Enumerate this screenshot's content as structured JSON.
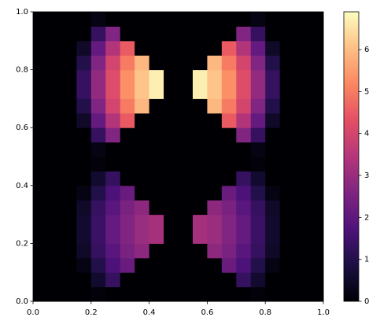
{
  "chart_data": {
    "type": "heatmap",
    "colormap": "magma",
    "xlim": [
      0,
      1
    ],
    "ylim": [
      0,
      1
    ],
    "clim": [
      0,
      6.9
    ],
    "xticks": [
      {
        "value": 0,
        "label": "0.0"
      },
      {
        "value": 0.2,
        "label": "0.2"
      },
      {
        "value": 0.4,
        "label": "0.4"
      },
      {
        "value": 0.6,
        "label": "0.6"
      },
      {
        "value": 0.8,
        "label": "0.8"
      },
      {
        "value": 1,
        "label": "1.0"
      }
    ],
    "yticks": [
      {
        "value": 0,
        "label": "0.0"
      },
      {
        "value": 0.2,
        "label": "0.2"
      },
      {
        "value": 0.4,
        "label": "0.4"
      },
      {
        "value": 0.6,
        "label": "0.6"
      },
      {
        "value": 0.8,
        "label": "0.8"
      },
      {
        "value": 1,
        "label": "1.0"
      }
    ],
    "cticks": [
      0,
      1,
      2,
      3,
      4,
      5,
      6
    ],
    "z": [
      [
        0,
        0,
        0,
        0,
        0.1,
        0,
        0,
        0,
        0,
        0,
        0,
        0,
        0,
        0,
        0,
        0.1,
        0,
        0,
        0,
        0
      ],
      [
        0,
        0,
        0,
        0,
        0.6,
        1.3,
        0,
        0,
        0,
        0,
        0,
        0,
        0,
        0,
        1.3,
        0.6,
        0,
        0,
        0,
        0
      ],
      [
        0,
        0,
        0,
        0.2,
        1.0,
        1.7,
        2.2,
        0,
        0,
        0,
        0,
        0,
        0,
        2.2,
        1.7,
        1.0,
        0.2,
        0,
        0,
        0
      ],
      [
        0,
        0,
        0,
        0.5,
        1.3,
        1.9,
        2.5,
        2.8,
        0,
        0,
        0,
        0,
        2.8,
        2.5,
        1.9,
        1.3,
        0.5,
        0,
        0,
        0
      ],
      [
        0,
        0,
        0,
        0.6,
        1.4,
        2.1,
        2.6,
        3.0,
        3.2,
        0,
        0,
        3.2,
        3.0,
        2.6,
        2.1,
        1.4,
        0.6,
        0,
        0,
        0
      ],
      [
        0,
        0,
        0,
        0.6,
        1.4,
        2.1,
        2.6,
        3.0,
        3.2,
        0,
        0,
        3.2,
        3.0,
        2.6,
        2.1,
        1.4,
        0.6,
        0,
        0,
        0
      ],
      [
        0,
        0,
        0,
        0.5,
        1.3,
        1.9,
        2.5,
        2.8,
        0,
        0,
        0,
        0,
        2.8,
        2.5,
        1.9,
        1.3,
        0.5,
        0,
        0,
        0
      ],
      [
        0,
        0,
        0,
        0.2,
        1.0,
        1.7,
        2.2,
        0,
        0,
        0,
        0,
        0,
        0,
        2.2,
        1.7,
        1.0,
        0.2,
        0,
        0,
        0
      ],
      [
        0,
        0,
        0,
        0,
        0.6,
        1.3,
        0,
        0,
        0,
        0,
        0,
        0,
        0,
        0,
        1.3,
        0.6,
        0,
        0,
        0,
        0
      ],
      [
        0,
        0,
        0,
        0,
        0.1,
        0,
        0,
        0,
        0,
        0,
        0,
        0,
        0,
        0,
        0,
        0.1,
        0,
        0,
        0,
        0
      ],
      [
        0,
        0,
        0,
        0,
        0.2,
        0,
        0,
        0,
        0,
        0,
        0,
        0,
        0,
        0,
        0,
        0.2,
        0,
        0,
        0,
        0
      ],
      [
        0,
        0,
        0,
        0,
        1.3,
        2.6,
        0,
        0,
        0,
        0,
        0,
        0,
        0,
        0,
        2.6,
        1.3,
        0,
        0,
        0,
        0
      ],
      [
        0,
        0,
        0,
        0.5,
        2.1,
        3.4,
        4.5,
        0,
        0,
        0,
        0,
        0,
        0,
        4.5,
        3.4,
        2.1,
        0.5,
        0,
        0,
        0
      ],
      [
        0,
        0,
        0,
        1.0,
        2.6,
        4.0,
        5.0,
        5.9,
        0,
        0,
        0,
        0,
        5.9,
        5.0,
        4.0,
        2.6,
        1.0,
        0,
        0,
        0
      ],
      [
        0,
        0,
        0,
        1.3,
        2.9,
        4.2,
        5.3,
        6.1,
        6.7,
        0,
        0,
        6.7,
        6.1,
        5.3,
        4.2,
        2.9,
        1.3,
        0,
        0,
        0
      ],
      [
        0,
        0,
        0,
        1.3,
        2.9,
        4.2,
        5.3,
        6.1,
        6.7,
        0,
        0,
        6.7,
        6.1,
        5.3,
        4.2,
        2.9,
        1.3,
        0,
        0,
        0
      ],
      [
        0,
        0,
        0,
        1.0,
        2.6,
        4.0,
        5.0,
        5.9,
        0,
        0,
        0,
        0,
        5.9,
        5.0,
        4.0,
        2.6,
        1.0,
        0,
        0,
        0
      ],
      [
        0,
        0,
        0,
        0.5,
        2.1,
        3.4,
        4.5,
        0,
        0,
        0,
        0,
        0,
        0,
        4.5,
        3.4,
        2.1,
        0.5,
        0,
        0,
        0
      ],
      [
        0,
        0,
        0,
        0,
        1.3,
        2.6,
        0,
        0,
        0,
        0,
        0,
        0,
        0,
        0,
        2.6,
        1.3,
        0,
        0,
        0,
        0
      ],
      [
        0,
        0,
        0,
        0,
        0.2,
        0,
        0,
        0,
        0,
        0,
        0,
        0,
        0,
        0,
        0,
        0.2,
        0,
        0,
        0,
        0
      ]
    ]
  }
}
